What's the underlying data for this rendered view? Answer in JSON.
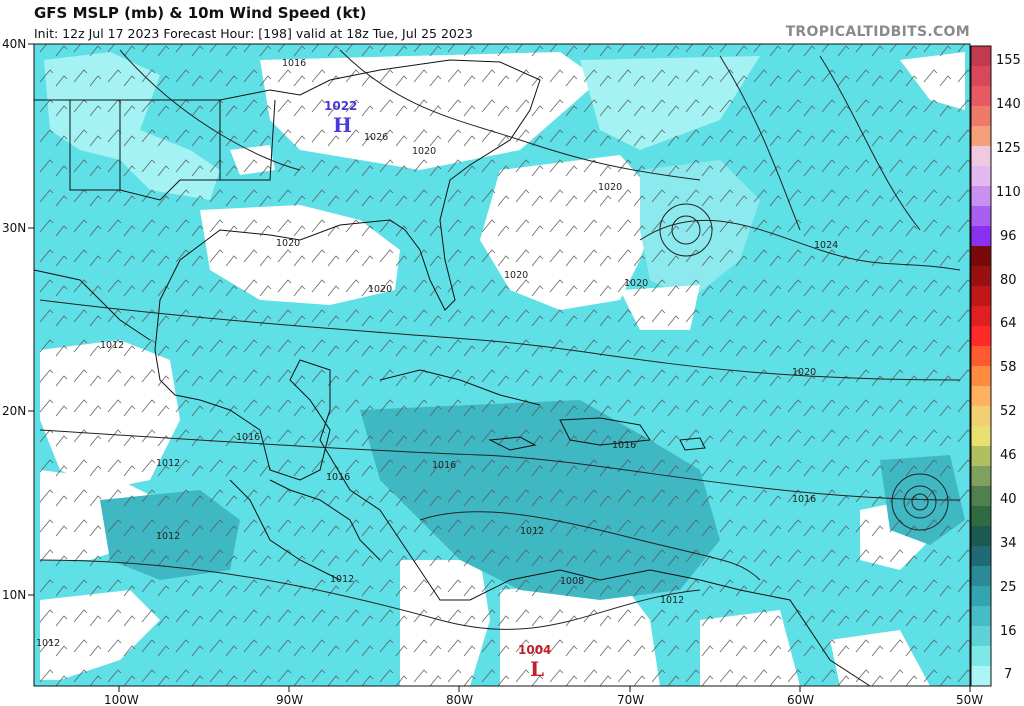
{
  "header": {
    "title": "GFS MSLP (mb) & 10m Wind Speed (kt)",
    "subtitle": "Init: 12z Jul 17 2023   Forecast Hour: [198]   valid at 18z Tue, Jul 25 2023",
    "brand": "TROPICALTIDBITS.COM"
  },
  "axes": {
    "latitude_labels": [
      "40N",
      "30N",
      "20N",
      "10N"
    ],
    "longitude_labels": [
      "100W",
      "90W",
      "80W",
      "70W",
      "60W",
      "50W"
    ]
  },
  "pressure_systems": [
    {
      "type": "high",
      "symbol": "H",
      "value": "1022",
      "color": "#4b3bd6"
    },
    {
      "type": "low",
      "symbol": "L",
      "value": "1004",
      "color": "#c0202a"
    }
  ],
  "isobar_labels": [
    "1016",
    "1020",
    "1020",
    "1020",
    "1020",
    "1020",
    "1020",
    "1024",
    "1020",
    "1012",
    "1016",
    "1012",
    "1016",
    "1016",
    "1016",
    "1016",
    "1012",
    "1012",
    "1012",
    "1008",
    "1012",
    "1012",
    "1026"
  ],
  "colorbar": {
    "labels": [
      "155",
      "140",
      "125",
      "110",
      "96",
      "80",
      "64",
      "58",
      "52",
      "46",
      "40",
      "34",
      "25",
      "16",
      "7"
    ],
    "colors": [
      "#c23a4e",
      "#d8485a",
      "#e85a62",
      "#f07a68",
      "#f4a07a",
      "#f0c8e0",
      "#e4b8f0",
      "#c890f0",
      "#a860f0",
      "#8a30f0",
      "#7a0a0a",
      "#9a1010",
      "#c01818",
      "#e02020",
      "#ff2a2a",
      "#ff5a30",
      "#ff8a40",
      "#ffb060",
      "#f0d070",
      "#e8e070",
      "#b0c060",
      "#80a060",
      "#508050",
      "#306a40",
      "#1a5a50",
      "#206a78",
      "#2a8a98",
      "#34a4b0",
      "#46bcc4",
      "#5ed2d6",
      "#7ee8e8",
      "#aaf6f6"
    ]
  }
}
